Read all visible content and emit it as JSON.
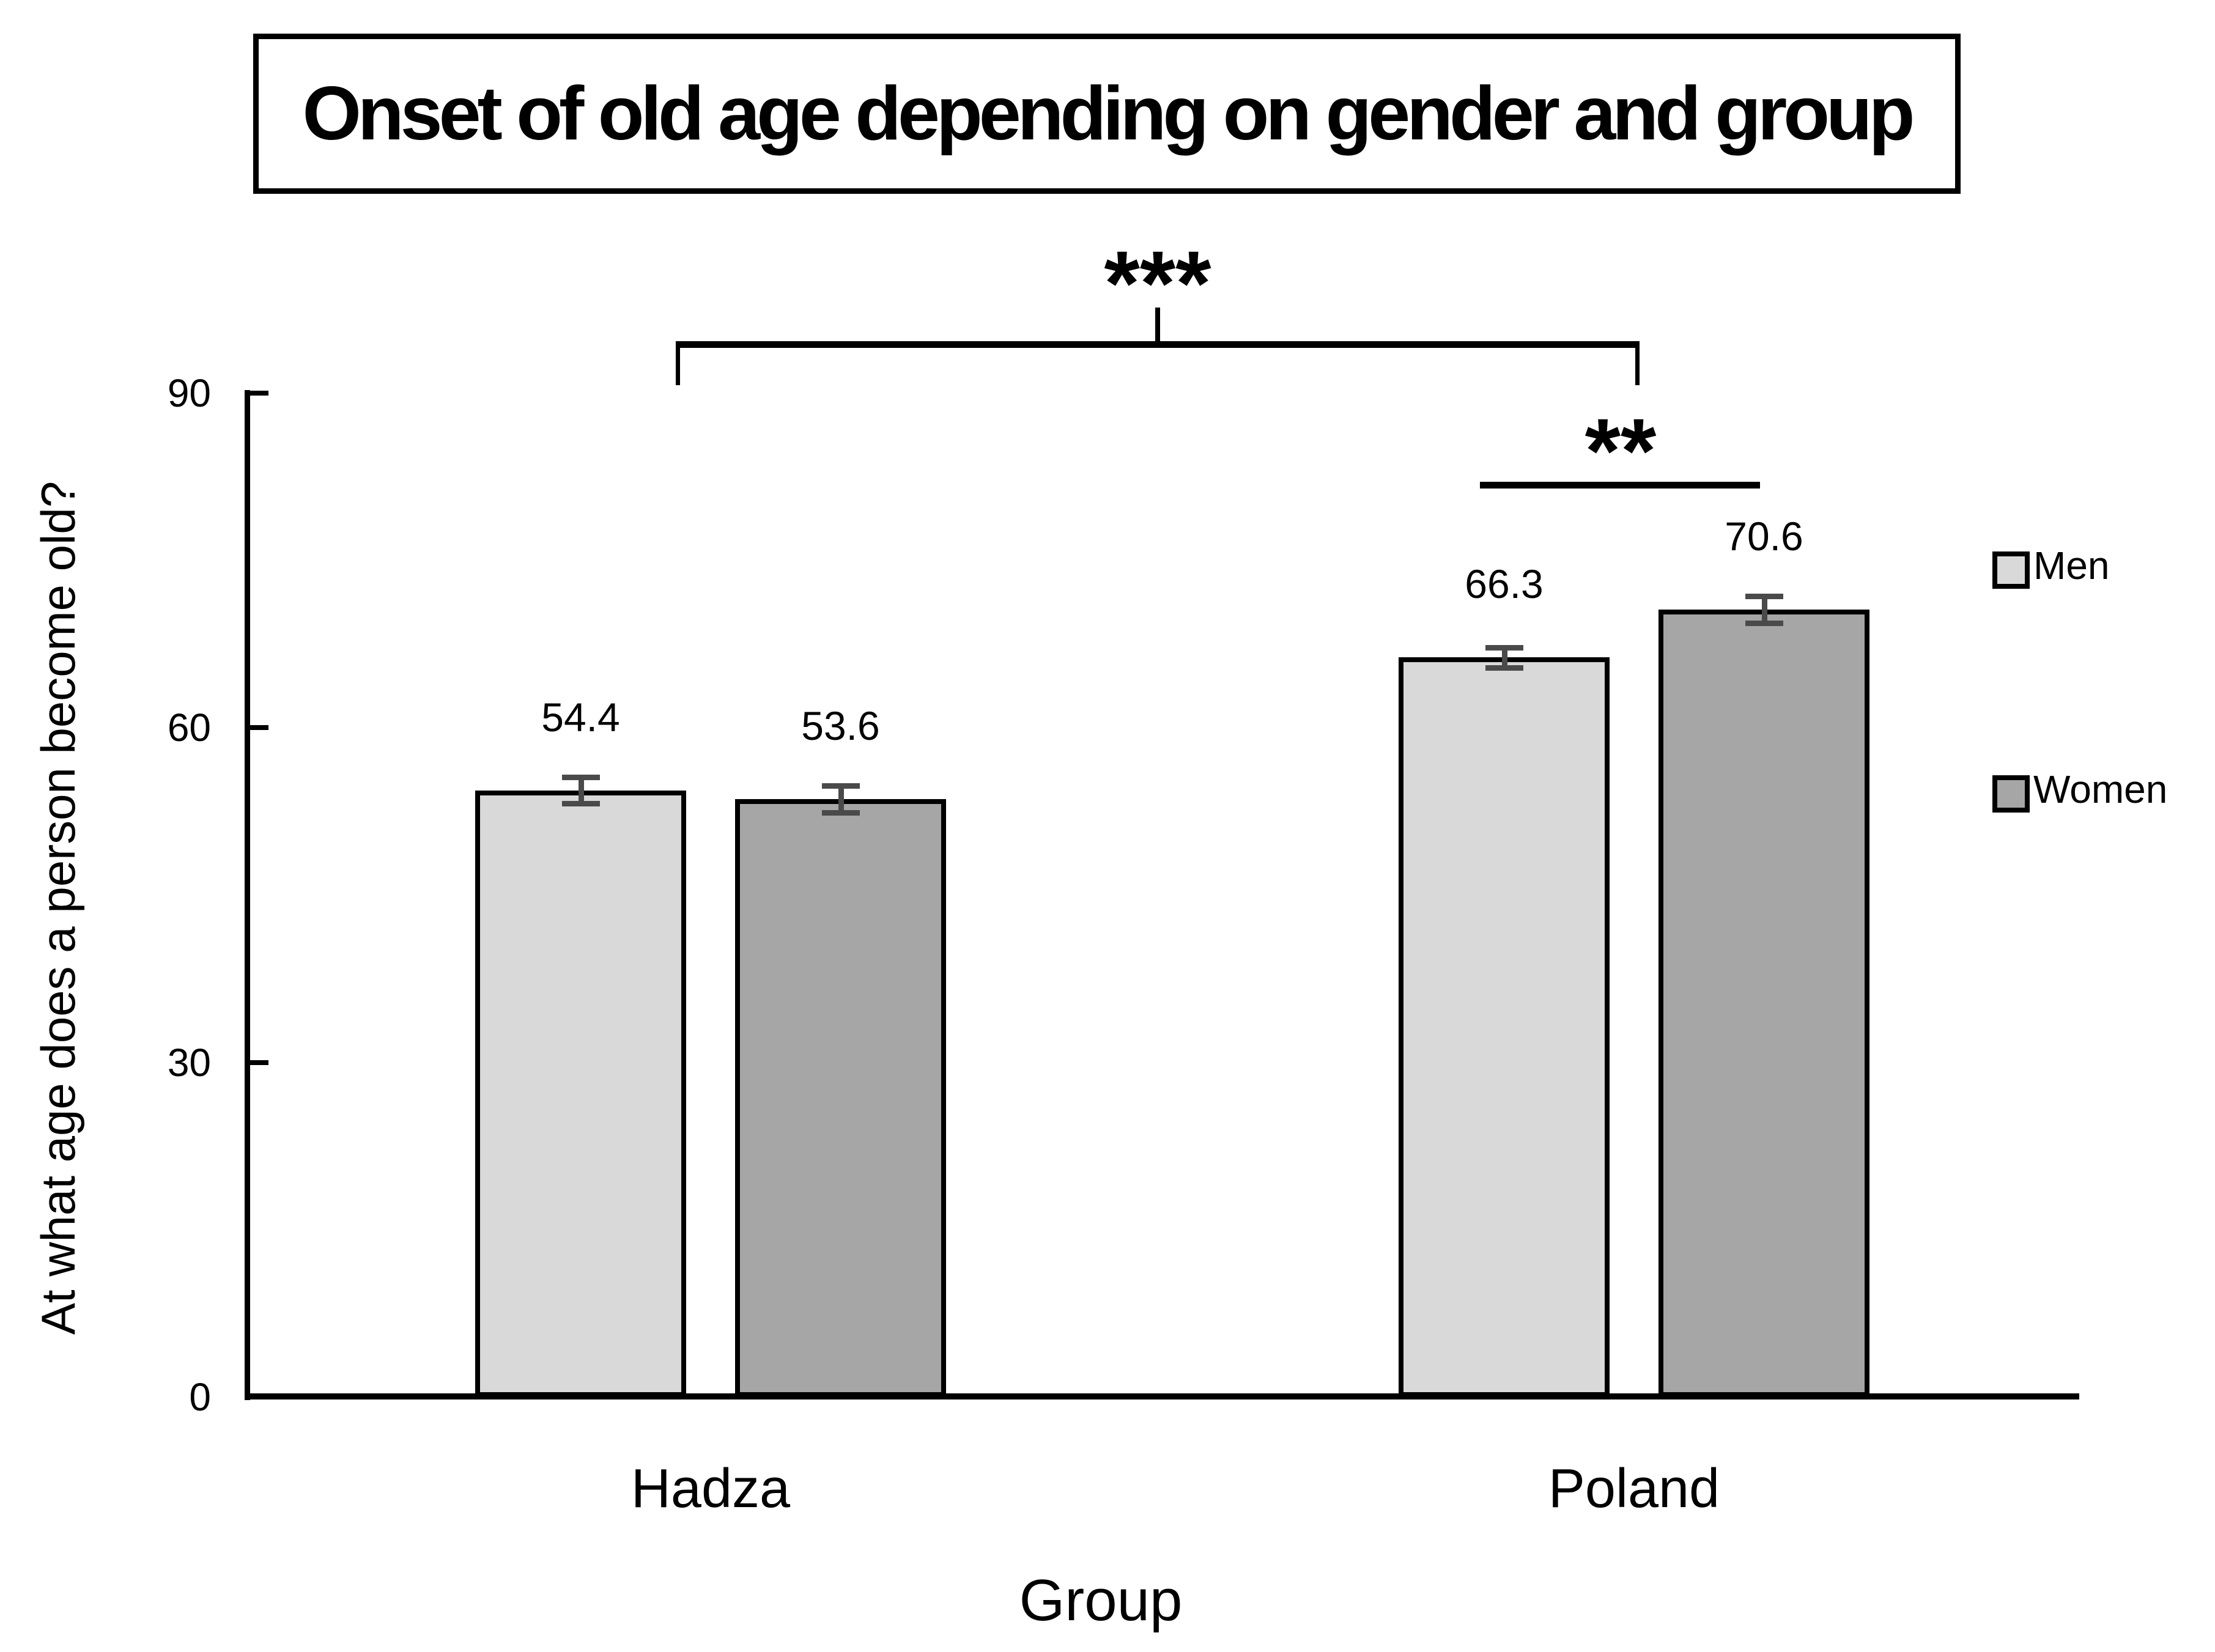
{
  "title": "Onset of old age depending on gender and group",
  "y_axis": {
    "title": "At what age does a person become old?",
    "tick_labels": [
      "0",
      "30",
      "60",
      "90"
    ]
  },
  "x_axis": {
    "title": "Group",
    "categories": [
      "Hadza",
      "Poland"
    ]
  },
  "legend": [
    {
      "label": "Men",
      "color": "#d9d9d9"
    },
    {
      "label": "Women",
      "color": "#a6a6a6"
    }
  ],
  "annotations": {
    "between_groups": "***",
    "within_poland": "**"
  },
  "colors": {
    "men_fill": "#d9d9d9",
    "women_fill": "#a6a6a6",
    "bar_border": "#000000",
    "error_bar": "#4a4a4a"
  },
  "chart_data": {
    "type": "bar",
    "title": "Onset of old age depending on gender and group",
    "categories": [
      "Hadza",
      "Poland"
    ],
    "series": [
      {
        "name": "Men",
        "values": [
          54.4,
          66.3
        ],
        "errors": [
          1.2,
          0.9
        ],
        "color": "#d9d9d9"
      },
      {
        "name": "Women",
        "values": [
          53.6,
          70.6
        ],
        "errors": [
          1.2,
          1.2
        ],
        "color": "#a6a6a6"
      }
    ],
    "value_labels": [
      "54.4",
      "53.6",
      "66.3",
      "70.6"
    ],
    "xlabel": "Group",
    "ylabel": "At what age does a person become old?",
    "ylim": [
      0,
      90
    ],
    "yticks": [
      0,
      30,
      60,
      90
    ],
    "grid": false,
    "legend_position": "right",
    "error_bars_shown": true,
    "significance": [
      {
        "compares": "Hadza vs Poland",
        "label": "***"
      },
      {
        "compares": "Poland Men vs Poland Women",
        "label": "**"
      }
    ]
  }
}
